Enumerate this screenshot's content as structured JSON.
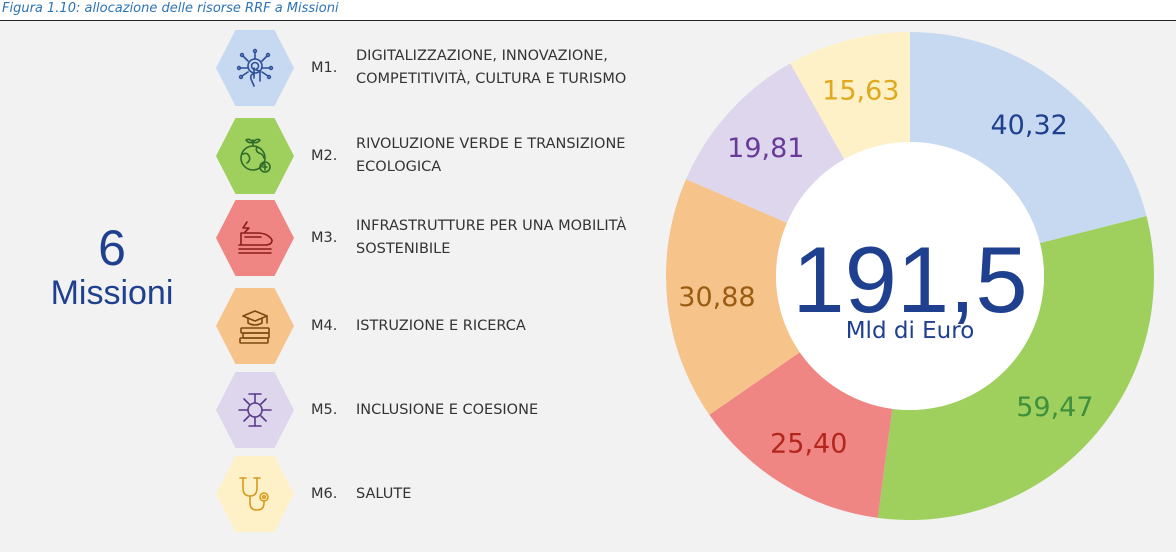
{
  "caption": "Figura 1.10: allocazione delle risorse RRF a Missioni",
  "count": {
    "number": "6",
    "word": "Missioni"
  },
  "missions": [
    {
      "code": "M1.",
      "label": "DIGITALIZZAZIONE, INNOVAZIONE, COMPETITIVITÀ, CULTURA E TURISMO",
      "icon": "digital-hand-icon"
    },
    {
      "code": "M2.",
      "label": "RIVOLUZIONE VERDE E TRANSIZIONE ECOLOGICA",
      "icon": "green-globe-icon"
    },
    {
      "code": "M3.",
      "label": "INFRASTRUTTURE PER UNA MOBILITÀ SOSTENIBILE",
      "icon": "train-icon"
    },
    {
      "code": "M4.",
      "label": "ISTRUZIONE E RICERCA",
      "icon": "graduation-books-icon"
    },
    {
      "code": "M5.",
      "label": "INCLUSIONE E COESIONE",
      "icon": "joined-hands-icon"
    },
    {
      "code": "M6.",
      "label": "SALUTE",
      "icon": "stethoscope-icon"
    }
  ],
  "chart_data": {
    "type": "pie",
    "style": "donut",
    "center_value": "191,5",
    "center_label": "Mld di Euro",
    "start": "top (12 o'clock), clockwise",
    "slices": [
      {
        "mission": "M1",
        "value": 40.32,
        "label": "40,32",
        "fill": "#c6d9f0",
        "text_color": "#1f3f8f"
      },
      {
        "mission": "M2",
        "value": 59.47,
        "label": "59,47",
        "fill": "#9fd05e",
        "text_color": "#3e8f3e"
      },
      {
        "mission": "M3",
        "value": 25.4,
        "label": "25,40",
        "fill": "#ef8683",
        "text_color": "#b3261e"
      },
      {
        "mission": "M4",
        "value": 30.88,
        "label": "30,88",
        "fill": "#f6c48a",
        "text_color": "#9a5b12"
      },
      {
        "mission": "M5",
        "value": 19.81,
        "label": "19,81",
        "fill": "#ddd6ec",
        "text_color": "#6a3a9a"
      },
      {
        "mission": "M6",
        "value": 15.63,
        "label": "15,63",
        "fill": "#fff1c7",
        "text_color": "#e0a81e"
      }
    ]
  },
  "colors": {
    "title_blue": "#1f3f8f",
    "caption_blue": "#2e74b5",
    "hex_fills": [
      "#c6d9f0",
      "#9fd05e",
      "#ef8683",
      "#f6c48a",
      "#ddd6ec",
      "#fff1c7"
    ]
  }
}
